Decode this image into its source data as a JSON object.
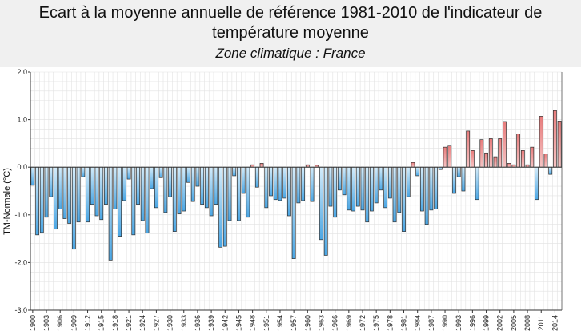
{
  "title_line1": "Ecart à la moyenne annuelle de référence 1981-2010 de l'indicateur de",
  "title_line2": "température moyenne",
  "subtitle": "Zone climatique : France",
  "colors": {
    "negative_top": "#d4ecfa",
    "negative_bottom": "#4aa6e4",
    "positive_top": "#f6c4c4",
    "positive_bottom": "#e87c7c",
    "bar_stroke": "#333333",
    "grid": "#e2e2e2"
  },
  "chart_data": {
    "type": "bar",
    "title": "Ecart à la moyenne annuelle de référence 1981-2010 de l'indicateur de température moyenne",
    "subtitle": "Zone climatique : France",
    "ylabel": "TM-Normale (°C)",
    "xlabel": "",
    "ylim": [
      -3.0,
      2.0
    ],
    "yticks": [
      "2.0",
      "1.0",
      "0.0",
      "-1.0",
      "-2.0",
      "-3.0"
    ],
    "ytick_values": [
      2.0,
      1.0,
      0.0,
      -1.0,
      -2.0,
      -3.0
    ],
    "grid": true,
    "categories": [
      1900,
      1901,
      1902,
      1903,
      1904,
      1905,
      1906,
      1907,
      1908,
      1909,
      1910,
      1911,
      1912,
      1913,
      1914,
      1915,
      1916,
      1917,
      1918,
      1919,
      1920,
      1921,
      1922,
      1923,
      1924,
      1925,
      1926,
      1927,
      1928,
      1929,
      1930,
      1931,
      1932,
      1933,
      1934,
      1935,
      1936,
      1937,
      1938,
      1939,
      1940,
      1941,
      1942,
      1943,
      1944,
      1945,
      1946,
      1947,
      1948,
      1949,
      1950,
      1951,
      1952,
      1953,
      1954,
      1955,
      1956,
      1957,
      1958,
      1959,
      1960,
      1961,
      1962,
      1963,
      1964,
      1965,
      1966,
      1967,
      1968,
      1969,
      1970,
      1971,
      1972,
      1973,
      1974,
      1975,
      1976,
      1977,
      1978,
      1979,
      1980,
      1981,
      1982,
      1983,
      1984,
      1985,
      1986,
      1987,
      1988,
      1989,
      1990,
      1991,
      1992,
      1993,
      1994,
      1995,
      1996,
      1997,
      1998,
      1999,
      2000,
      2001,
      2002,
      2003,
      2004,
      2005,
      2006,
      2007,
      2008,
      2009,
      2010,
      2011,
      2012,
      2013,
      2014,
      2015
    ],
    "xtick_labels": [
      "1900",
      "1903",
      "1906",
      "1909",
      "1912",
      "1915",
      "1918",
      "1921",
      "1924",
      "1927",
      "1930",
      "1933",
      "1936",
      "1939",
      "1942",
      "1945",
      "1948",
      "1951",
      "1954",
      "1957",
      "1960",
      "1963",
      "1966",
      "1969",
      "1972",
      "1975",
      "1978",
      "1981",
      "1984",
      "1987",
      "1990",
      "1993",
      "1996",
      "1999",
      "2002",
      "2005",
      "2008",
      "2011",
      "2014"
    ],
    "values": [
      -0.38,
      -1.42,
      -1.37,
      -1.05,
      -0.62,
      -1.3,
      -0.88,
      -1.08,
      -1.18,
      -1.72,
      -1.15,
      -0.2,
      -1.15,
      -0.78,
      -1.02,
      -1.1,
      -0.78,
      -1.95,
      -0.88,
      -1.45,
      -0.7,
      -0.25,
      -1.42,
      -0.78,
      -1.12,
      -1.38,
      -0.45,
      -0.85,
      -0.22,
      -0.95,
      -0.62,
      -1.35,
      -0.98,
      -0.92,
      -0.32,
      -0.72,
      -0.4,
      -0.78,
      -0.85,
      -1.02,
      -0.78,
      -1.68,
      -1.66,
      -1.12,
      -0.18,
      -1.12,
      -0.55,
      -1.05,
      0.05,
      -0.42,
      0.08,
      -0.85,
      -0.6,
      -0.68,
      -0.7,
      -0.65,
      -1.02,
      -1.92,
      -0.75,
      -0.7,
      0.05,
      -0.72,
      0.04,
      -1.52,
      -1.85,
      -0.82,
      -1.05,
      -0.48,
      -0.58,
      -0.9,
      -0.92,
      -0.82,
      -0.9,
      -1.15,
      -0.92,
      -0.75,
      -0.48,
      -0.85,
      -0.65,
      -1.15,
      -0.95,
      -1.35,
      -0.62,
      0.1,
      -0.18,
      -0.92,
      -1.2,
      -0.9,
      -0.88,
      -0.05,
      0.42,
      0.46,
      -0.55,
      -0.2,
      -0.5,
      0.76,
      0.35,
      -0.68,
      0.58,
      0.3,
      0.6,
      0.22,
      0.6,
      0.96,
      0.08,
      0.05,
      0.7,
      0.35,
      0.05,
      0.42,
      -0.68,
      1.07,
      0.28,
      -0.15,
      1.19,
      0.97
    ]
  }
}
